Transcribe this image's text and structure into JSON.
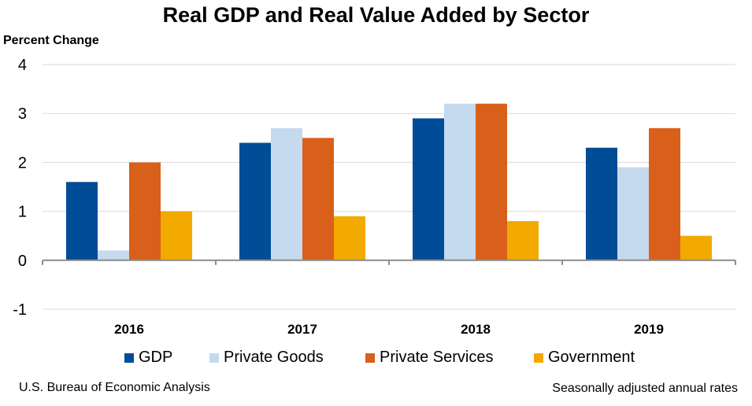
{
  "chart_data": {
    "type": "bar",
    "title": "Real GDP and Real Value Added by Sector",
    "xlabel": "",
    "ylabel": "Percent Change",
    "ylim": [
      -1,
      4
    ],
    "yticks": [
      -1,
      0,
      1,
      2,
      3,
      4
    ],
    "grid": true,
    "legend_position": "bottom",
    "categories": [
      "2016",
      "2017",
      "2018",
      "2019"
    ],
    "series": [
      {
        "name": "GDP",
        "color": "#004C97",
        "values": [
          1.6,
          2.4,
          2.9,
          2.3
        ]
      },
      {
        "name": "Private Goods",
        "color": "#C5D9EF",
        "values": [
          0.2,
          2.7,
          3.2,
          1.9
        ]
      },
      {
        "name": "Private Services",
        "color": "#D9601A",
        "values": [
          2.0,
          2.5,
          3.2,
          2.7
        ]
      },
      {
        "name": "Government",
        "color": "#F2A900",
        "values": [
          1.0,
          0.9,
          0.8,
          0.5
        ]
      }
    ],
    "source": "U.S. Bureau of Economic Analysis",
    "note": "Seasonally adjusted annual rates"
  },
  "colors": {
    "gridline": "#D9D9D9",
    "axis": "#8C8C8C"
  }
}
